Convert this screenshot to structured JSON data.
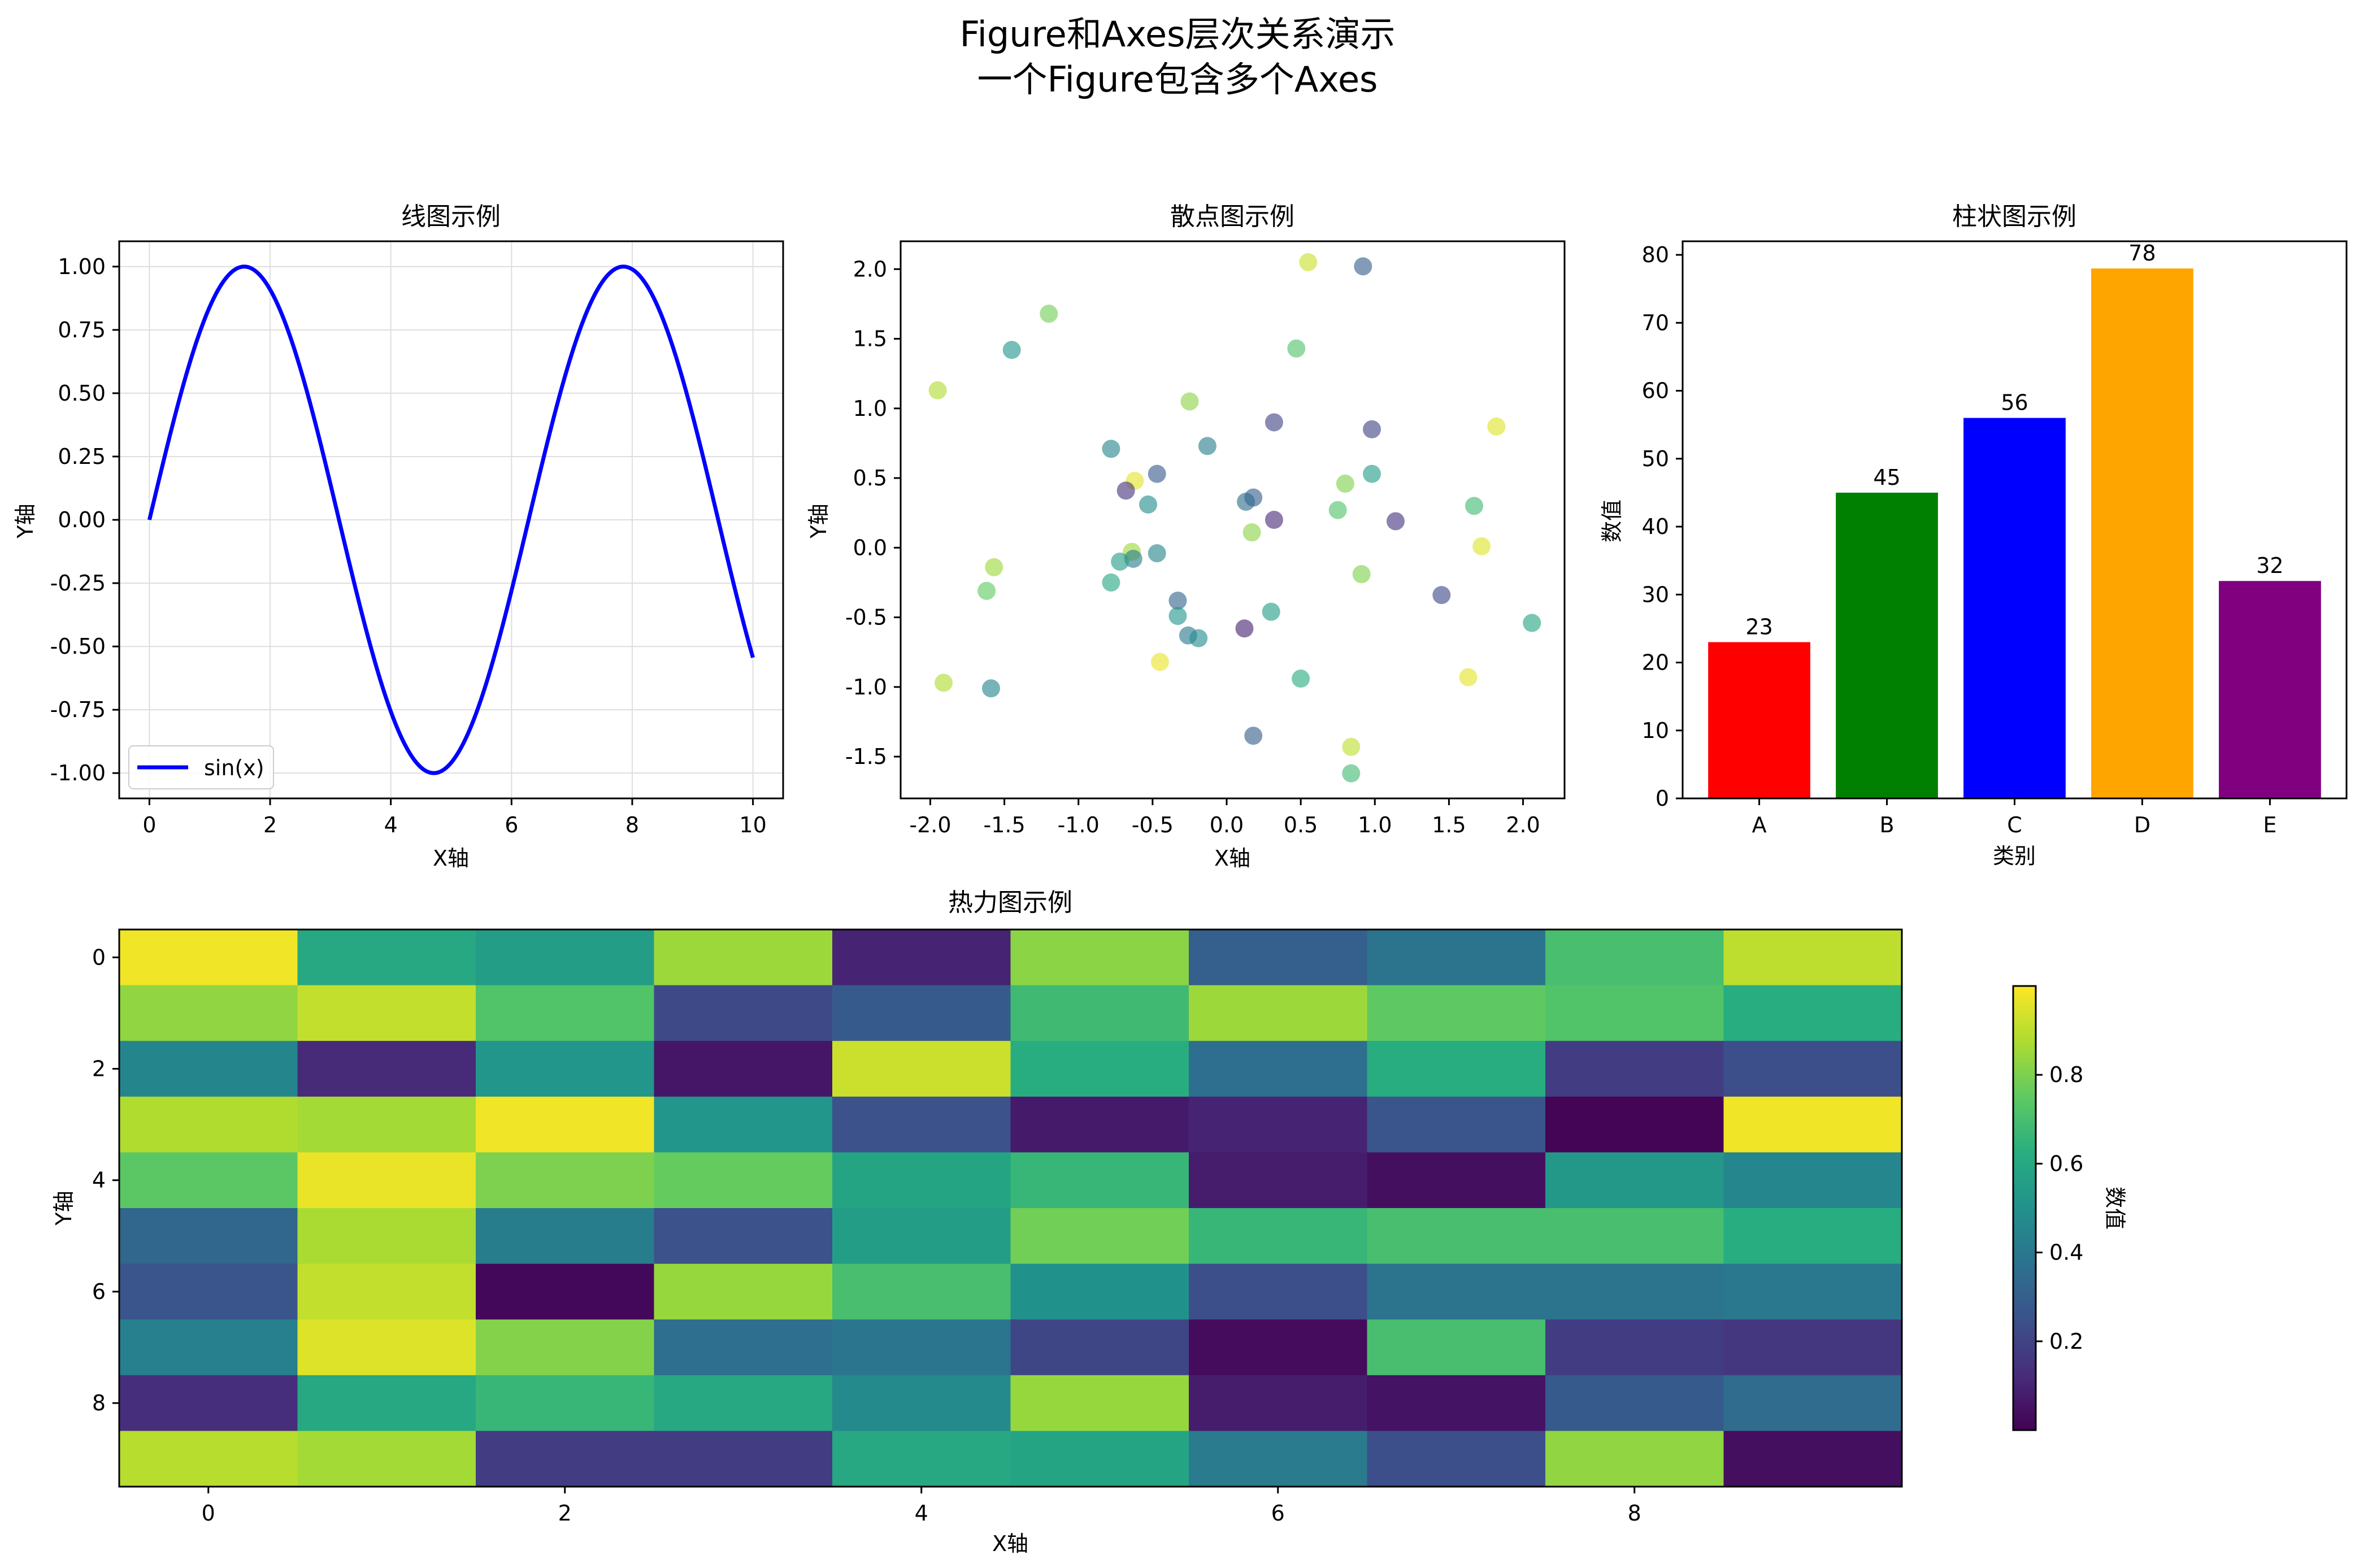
{
  "figure": {
    "title_line1": "Figure和Axes层次关系演示",
    "title_line2": "一个Figure包含多个Axes"
  },
  "chart_data": [
    {
      "type": "line",
      "title": "线图示例",
      "xlabel": "X轴",
      "ylabel": "Y轴",
      "xlim": [
        -0.5,
        10.5
      ],
      "ylim": [
        -1.1,
        1.1
      ],
      "xticks": [
        0,
        2,
        4,
        6,
        8,
        10
      ],
      "xtick_labels": [
        "0",
        "2",
        "4",
        "6",
        "8",
        "10"
      ],
      "yticks": [
        1.0,
        0.75,
        0.5,
        0.25,
        0.0,
        -0.25,
        -0.5,
        -0.75,
        -1.0
      ],
      "ytick_labels": [
        "1.00",
        "0.75",
        "0.50",
        "0.25",
        "0.00",
        "-0.25",
        "-0.50",
        "-0.75",
        "-1.00"
      ],
      "grid": true,
      "series": [
        {
          "name": "sin(x)",
          "function": "sin",
          "x_start": 0,
          "x_end": 10,
          "color": "#0000ff"
        }
      ],
      "legend_position": "lower-left"
    },
    {
      "type": "scatter",
      "title": "散点图示例",
      "xlabel": "X轴",
      "ylabel": "Y轴",
      "xlim": [
        -2.2,
        2.28
      ],
      "ylim": [
        -1.8,
        2.2
      ],
      "xticks": [
        -2.0,
        -1.5,
        -1.0,
        -0.5,
        0.0,
        0.5,
        1.0,
        1.5,
        2.0
      ],
      "xtick_labels": [
        "-2.0",
        "-1.5",
        "-1.0",
        "-0.5",
        "0.0",
        "0.5",
        "1.0",
        "1.5",
        "2.0"
      ],
      "yticks": [
        2.0,
        1.5,
        1.0,
        0.5,
        0.0,
        -0.5,
        -1.0,
        -1.5
      ],
      "ytick_labels": [
        "2.0",
        "1.5",
        "1.0",
        "0.5",
        "0.0",
        "-0.5",
        "-1.0",
        "-1.5"
      ],
      "colormap": "viridis",
      "points": [
        {
          "x": 0.55,
          "y": 2.05,
          "c": 0.92
        },
        {
          "x": 0.92,
          "y": 2.02,
          "c": 0.3
        },
        {
          "x": -1.2,
          "y": 1.68,
          "c": 0.78
        },
        {
          "x": 0.47,
          "y": 1.43,
          "c": 0.72
        },
        {
          "x": -1.45,
          "y": 1.42,
          "c": 0.52
        },
        {
          "x": -1.95,
          "y": 1.13,
          "c": 0.88
        },
        {
          "x": -0.25,
          "y": 1.05,
          "c": 0.82
        },
        {
          "x": 0.32,
          "y": 0.9,
          "c": 0.2
        },
        {
          "x": 1.82,
          "y": 0.87,
          "c": 0.95
        },
        {
          "x": 0.98,
          "y": 0.85,
          "c": 0.2
        },
        {
          "x": -0.13,
          "y": 0.73,
          "c": 0.42
        },
        {
          "x": -0.78,
          "y": 0.71,
          "c": 0.45
        },
        {
          "x": -0.47,
          "y": 0.53,
          "c": 0.28
        },
        {
          "x": 0.98,
          "y": 0.53,
          "c": 0.55
        },
        {
          "x": -0.62,
          "y": 0.48,
          "c": 0.96
        },
        {
          "x": 0.8,
          "y": 0.46,
          "c": 0.8
        },
        {
          "x": -0.68,
          "y": 0.41,
          "c": 0.15
        },
        {
          "x": 0.18,
          "y": 0.36,
          "c": 0.3
        },
        {
          "x": 0.13,
          "y": 0.33,
          "c": 0.35
        },
        {
          "x": -0.53,
          "y": 0.31,
          "c": 0.48
        },
        {
          "x": 1.67,
          "y": 0.3,
          "c": 0.68
        },
        {
          "x": 0.75,
          "y": 0.27,
          "c": 0.72
        },
        {
          "x": 0.32,
          "y": 0.2,
          "c": 0.12
        },
        {
          "x": 1.14,
          "y": 0.19,
          "c": 0.15
        },
        {
          "x": 0.17,
          "y": 0.11,
          "c": 0.82
        },
        {
          "x": 1.72,
          "y": 0.01,
          "c": 0.95
        },
        {
          "x": -0.64,
          "y": -0.03,
          "c": 0.85
        },
        {
          "x": -0.47,
          "y": -0.04,
          "c": 0.45
        },
        {
          "x": -0.63,
          "y": -0.08,
          "c": 0.42
        },
        {
          "x": -0.72,
          "y": -0.1,
          "c": 0.55
        },
        {
          "x": -1.57,
          "y": -0.14,
          "c": 0.85
        },
        {
          "x": 0.91,
          "y": -0.19,
          "c": 0.8
        },
        {
          "x": -0.78,
          "y": -0.25,
          "c": 0.6
        },
        {
          "x": -1.62,
          "y": -0.31,
          "c": 0.75
        },
        {
          "x": 1.45,
          "y": -0.34,
          "c": 0.22
        },
        {
          "x": -0.33,
          "y": -0.38,
          "c": 0.32
        },
        {
          "x": 0.3,
          "y": -0.46,
          "c": 0.55
        },
        {
          "x": -0.33,
          "y": -0.49,
          "c": 0.52
        },
        {
          "x": 2.06,
          "y": -0.54,
          "c": 0.58
        },
        {
          "x": 0.12,
          "y": -0.58,
          "c": 0.1
        },
        {
          "x": -0.26,
          "y": -0.63,
          "c": 0.4
        },
        {
          "x": -0.19,
          "y": -0.65,
          "c": 0.48
        },
        {
          "x": -0.45,
          "y": -0.82,
          "c": 0.97
        },
        {
          "x": 0.5,
          "y": -0.94,
          "c": 0.62
        },
        {
          "x": 1.63,
          "y": -0.93,
          "c": 0.96
        },
        {
          "x": -1.91,
          "y": -0.97,
          "c": 0.88
        },
        {
          "x": -1.59,
          "y": -1.01,
          "c": 0.45
        },
        {
          "x": 0.18,
          "y": -1.35,
          "c": 0.3
        },
        {
          "x": 0.84,
          "y": -1.43,
          "c": 0.9
        },
        {
          "x": 0.84,
          "y": -1.62,
          "c": 0.68
        }
      ]
    },
    {
      "type": "bar",
      "title": "柱状图示例",
      "xlabel": "类别",
      "ylabel": "数值",
      "categories": [
        "A",
        "B",
        "C",
        "D",
        "E"
      ],
      "values": [
        23,
        45,
        56,
        78,
        32
      ],
      "value_labels": [
        "23",
        "45",
        "56",
        "78",
        "32"
      ],
      "colors": [
        "#ff0000",
        "#008000",
        "#0000ff",
        "#ffa500",
        "#800080"
      ],
      "ylim": [
        0,
        82
      ],
      "yticks": [
        0,
        10,
        20,
        30,
        40,
        50,
        60,
        70,
        80
      ],
      "ytick_labels": [
        "0",
        "10",
        "20",
        "30",
        "40",
        "50",
        "60",
        "70",
        "80"
      ]
    },
    {
      "type": "heatmap",
      "title": "热力图示例",
      "xlabel": "X轴",
      "ylabel": "Y轴",
      "colormap": "viridis",
      "xticks": [
        0,
        2,
        4,
        6,
        8
      ],
      "xtick_labels": [
        "0",
        "2",
        "4",
        "6",
        "8"
      ],
      "yticks": [
        0,
        2,
        4,
        6,
        8
      ],
      "ytick_labels": [
        "0",
        "2",
        "4",
        "6",
        "8"
      ],
      "values": [
        [
          0.98,
          0.6,
          0.55,
          0.85,
          0.1,
          0.82,
          0.3,
          0.38,
          0.7,
          0.9
        ],
        [
          0.83,
          0.91,
          0.72,
          0.22,
          0.28,
          0.68,
          0.85,
          0.75,
          0.72,
          0.62
        ],
        [
          0.45,
          0.12,
          0.52,
          0.06,
          0.92,
          0.62,
          0.36,
          0.62,
          0.18,
          0.24
        ],
        [
          0.88,
          0.86,
          0.98,
          0.52,
          0.25,
          0.07,
          0.1,
          0.26,
          0.01,
          0.98
        ],
        [
          0.74,
          0.97,
          0.8,
          0.76,
          0.58,
          0.66,
          0.08,
          0.04,
          0.53,
          0.46
        ],
        [
          0.33,
          0.87,
          0.42,
          0.25,
          0.55,
          0.78,
          0.66,
          0.7,
          0.7,
          0.62
        ],
        [
          0.26,
          0.91,
          0.02,
          0.84,
          0.7,
          0.5,
          0.24,
          0.38,
          0.38,
          0.4
        ],
        [
          0.43,
          0.95,
          0.81,
          0.36,
          0.39,
          0.21,
          0.03,
          0.7,
          0.18,
          0.16
        ],
        [
          0.13,
          0.6,
          0.66,
          0.6,
          0.47,
          0.84,
          0.08,
          0.05,
          0.28,
          0.35
        ],
        [
          0.89,
          0.86,
          0.18,
          0.18,
          0.6,
          0.58,
          0.41,
          0.24,
          0.83,
          0.04
        ]
      ],
      "colorbar": {
        "label": "数值",
        "min": 0.0,
        "max": 1.0,
        "ticks": [
          0.2,
          0.4,
          0.6,
          0.8
        ],
        "tick_labels": [
          "0.2",
          "0.4",
          "0.6",
          "0.8"
        ]
      }
    }
  ]
}
